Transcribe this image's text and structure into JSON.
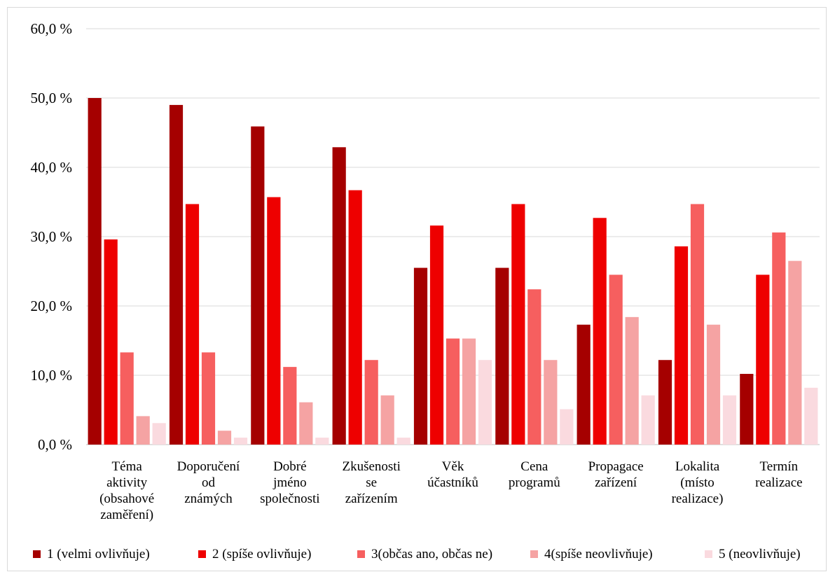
{
  "chart_data": {
    "type": "bar",
    "title": "",
    "xlabel": "",
    "ylabel": "",
    "ylim": [
      0,
      60
    ],
    "y_ticks": [
      "0,0 %",
      "10,0 %",
      "20,0 %",
      "30,0 %",
      "40,0 %",
      "50,0 %",
      "60,0 %"
    ],
    "grid": true,
    "legend_position": "bottom",
    "categories": [
      [
        "Téma",
        "aktivity",
        "(obsahové",
        "zaměření)"
      ],
      [
        "Doporučení",
        "od",
        "známých"
      ],
      [
        "Dobré",
        "jméno",
        "společnosti"
      ],
      [
        "Zkušenosti",
        "se",
        "zařízením"
      ],
      [
        "Věk",
        "účastníků"
      ],
      [
        "Cena",
        "programů"
      ],
      [
        "Propagace",
        "zařízení"
      ],
      [
        "Lokalita",
        "(místo",
        "realizace)"
      ],
      [
        "Termín",
        "realizace"
      ]
    ],
    "series": [
      {
        "name": "1 (velmi ovlivňuje)",
        "color": "#a50000",
        "values": [
          50.0,
          49.0,
          45.9,
          42.9,
          25.5,
          25.5,
          17.3,
          12.2,
          10.2
        ]
      },
      {
        "name": "2 (spíše ovlivňuje)",
        "color": "#ee0000",
        "values": [
          29.6,
          34.7,
          35.7,
          36.7,
          31.6,
          34.7,
          32.7,
          28.6,
          24.5
        ]
      },
      {
        "name": "3(občas ano, občas ne)",
        "color": "#f65f5f",
        "values": [
          13.3,
          13.3,
          11.2,
          12.2,
          15.3,
          22.4,
          24.5,
          34.7,
          30.6
        ]
      },
      {
        "name": "4(spíše neovlivňuje)",
        "color": "#f5a3a3",
        "values": [
          4.1,
          2.0,
          6.1,
          7.1,
          15.3,
          12.2,
          18.4,
          17.3,
          26.5
        ]
      },
      {
        "name": "5 (neovlivňuje)",
        "color": "#fadadf",
        "values": [
          3.1,
          1.0,
          1.0,
          1.0,
          12.2,
          5.1,
          7.1,
          7.1,
          8.2
        ]
      }
    ]
  }
}
